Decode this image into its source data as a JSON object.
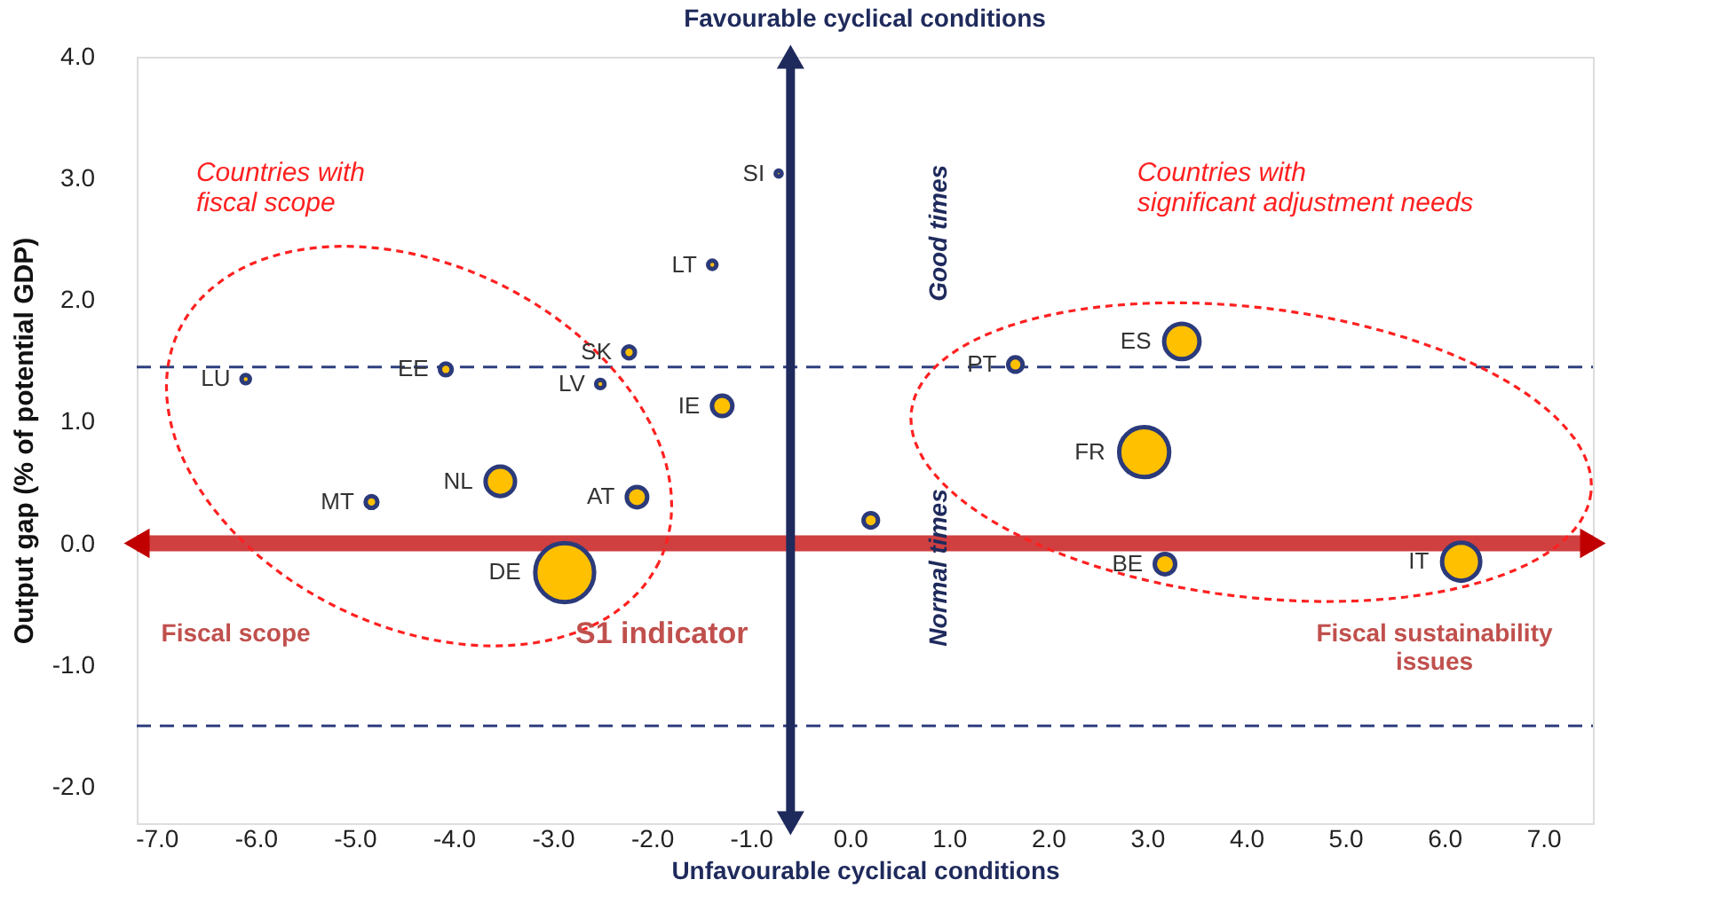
{
  "chart_data": {
    "type": "bubble",
    "title": "Favourable cyclical conditions",
    "xlabel": "Unfavourable cyclical conditions",
    "ylabel": "Output gap  (% of potential GDP)",
    "relative": false,
    "xlim": [
      -7.2,
      7.5
    ],
    "ylim": [
      -2.3,
      4.0
    ],
    "xticks": [
      {
        "value": -7,
        "label": "-7.0"
      },
      {
        "value": -6,
        "label": "-6.0"
      },
      {
        "value": -5,
        "label": "-5.0"
      },
      {
        "value": -4,
        "label": "-4.0"
      },
      {
        "value": -3,
        "label": "-3.0"
      },
      {
        "value": -2,
        "label": "-2.0"
      },
      {
        "value": -1,
        "label": "-1.0"
      },
      {
        "value": 0,
        "label": "0.0"
      },
      {
        "value": 1,
        "label": "1.0"
      },
      {
        "value": 2,
        "label": "2.0"
      },
      {
        "value": 3,
        "label": "3.0"
      },
      {
        "value": 4,
        "label": "4.0"
      },
      {
        "value": 5,
        "label": "5.0"
      },
      {
        "value": 6,
        "label": "6.0"
      },
      {
        "value": 7,
        "label": "7.0"
      }
    ],
    "yticks": [
      {
        "value": -2,
        "label": "-2.0"
      },
      {
        "value": -1,
        "label": "-1.0"
      },
      {
        "value": 0,
        "label": "0.0"
      },
      {
        "value": 1,
        "label": "1.0"
      },
      {
        "value": 2,
        "label": "2.0"
      },
      {
        "value": 3,
        "label": "3.0"
      },
      {
        "value": 4,
        "label": "4.0"
      }
    ],
    "grid": false,
    "legend": false,
    "marker": "circle",
    "series": [
      {
        "name": "SI",
        "color": "#ffc000",
        "x": [
          -0.72
        ],
        "values": [
          3.04
        ],
        "sizes": [
          0.01
        ]
      },
      {
        "name": "LT",
        "color": "#ffc000",
        "x": [
          -1.39
        ],
        "values": [
          2.29
        ],
        "sizes": [
          0.02
        ]
      },
      {
        "name": "SK",
        "color": "#ffc000",
        "x": [
          -2.23
        ],
        "values": [
          1.57
        ],
        "sizes": [
          0.04
        ]
      },
      {
        "name": "LV",
        "color": "#ffc000",
        "x": [
          -2.52
        ],
        "values": [
          1.31
        ],
        "sizes": [
          0.02
        ]
      },
      {
        "name": "EE",
        "color": "#ffc000",
        "x": [
          -4.08
        ],
        "values": [
          1.43
        ],
        "sizes": [
          0.04
        ]
      },
      {
        "name": "LU",
        "color": "#ffc000",
        "x": [
          -6.1
        ],
        "values": [
          1.35
        ],
        "sizes": [
          0.02
        ]
      },
      {
        "name": "IE",
        "color": "#ffc000",
        "x": [
          -1.29
        ],
        "values": [
          1.13
        ],
        "sizes": [
          0.12
        ]
      },
      {
        "name": "NL",
        "color": "#ffc000",
        "x": [
          -3.53
        ],
        "values": [
          0.51
        ],
        "sizes": [
          0.25
        ]
      },
      {
        "name": "AT",
        "color": "#ffc000",
        "x": [
          -2.15
        ],
        "values": [
          0.38
        ],
        "sizes": [
          0.12
        ]
      },
      {
        "name": "MT",
        "color": "#ffc000",
        "x": [
          -4.83
        ],
        "values": [
          0.34
        ],
        "sizes": [
          0.04
        ]
      },
      {
        "name": "DE",
        "color": "#ffc000",
        "x": [
          -2.88
        ],
        "values": [
          -0.24
        ],
        "sizes": [
          1
        ]
      },
      {
        "name": "PT",
        "color": "#ffc000",
        "x": [
          1.67
        ],
        "values": [
          1.47
        ],
        "sizes": [
          0.06
        ]
      },
      {
        "name": "ES",
        "color": "#ffc000",
        "x": [
          3.35
        ],
        "values": [
          1.66
        ],
        "sizes": [
          0.36
        ]
      },
      {
        "name": "FR",
        "color": "#ffc000",
        "x": [
          2.97
        ],
        "values": [
          0.75
        ],
        "sizes": [
          0.72
        ]
      },
      {
        "color": "#ffc000",
        "x": [
          0.21
        ],
        "values": [
          0.19
        ],
        "sizes": [
          0.06
        ]
      },
      {
        "name": "BE",
        "color": "#ffc000",
        "x": [
          3.18
        ],
        "values": [
          -0.17
        ],
        "sizes": [
          0.12
        ]
      },
      {
        "name": "IT",
        "color": "#ffc000",
        "x": [
          6.17
        ],
        "values": [
          -0.15
        ],
        "sizes": [
          0.42
        ]
      }
    ],
    "ref_lines": [
      {
        "axis": "y",
        "value": 1.45,
        "color": "#2f3f7f",
        "line_style": "dashed"
      },
      {
        "axis": "y",
        "value": -1.5,
        "color": "#2f3f7f",
        "line_style": "dashed"
      },
      {
        "axis": "y",
        "value": 0,
        "color": "#c00000",
        "line_style": "solid"
      },
      {
        "axis": "x",
        "value": -0.6,
        "color": "#1f2a5c",
        "line_style": "solid"
      }
    ],
    "annotations": [
      "Countries with\nfiscal scope",
      "Countries with\nsignificant adjustment needs",
      "Good times",
      "Normal times",
      "Fiscal scope",
      "S1 indicator",
      "Fiscal sustainability\n   issues"
    ]
  }
}
